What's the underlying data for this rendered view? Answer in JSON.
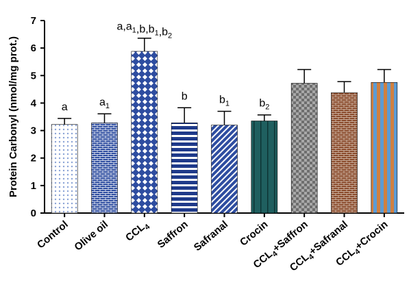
{
  "chart_data": {
    "type": "bar",
    "ylabel": "Protein Carbonyl (nmol/mg prot.)",
    "ylim": [
      0,
      7
    ],
    "yticks": [
      0,
      1,
      2,
      3,
      4,
      5,
      6,
      7
    ],
    "grid": false,
    "categories": [
      {
        "text": "Control",
        "sub": "",
        "tail": ""
      },
      {
        "text": "Olive oil",
        "sub": "",
        "tail": ""
      },
      {
        "text": "CCL",
        "sub": "4",
        "tail": ""
      },
      {
        "text": "Saffron",
        "sub": "",
        "tail": ""
      },
      {
        "text": "Safranal",
        "sub": "",
        "tail": ""
      },
      {
        "text": "Crocin",
        "sub": "",
        "tail": ""
      },
      {
        "text": "CCL",
        "sub": "4",
        "tail": "+Saffron"
      },
      {
        "text": "CCL",
        "sub": "4",
        "tail": "+Safranal"
      },
      {
        "text": "CCL",
        "sub": "4",
        "tail": "+Crocin"
      }
    ],
    "values": [
      3.22,
      3.28,
      5.88,
      3.28,
      3.2,
      3.35,
      4.72,
      4.38,
      4.75
    ],
    "errors": [
      0.22,
      0.33,
      0.48,
      0.55,
      0.5,
      0.22,
      0.5,
      0.4,
      0.47
    ],
    "bar_patterns": [
      "dots",
      "bricks",
      "diamonds",
      "hstripes",
      "diagonal",
      "vstripes-dark",
      "checker",
      "bricks-brown",
      "vstripes-orange"
    ],
    "colors": {
      "blue": "#2E4DA0",
      "light_blue": "#8AA3D6",
      "teal": "#1F5F5F",
      "gray": "#8A8A8A",
      "brown": "#8A4A2B",
      "orange": "#D08040",
      "sky": "#5B9BD5"
    },
    "annotations": [
      {
        "bar": 0,
        "parts": [
          {
            "t": "a"
          }
        ]
      },
      {
        "bar": 1,
        "parts": [
          {
            "t": "a"
          },
          {
            "t": "1",
            "sub": true
          }
        ]
      },
      {
        "bar": 2,
        "parts": [
          {
            "t": "a,a"
          },
          {
            "t": "1",
            "sub": true
          },
          {
            "t": ",b,b"
          },
          {
            "t": "1",
            "sub": true
          },
          {
            "t": ",b"
          },
          {
            "t": "2",
            "sub": true
          }
        ]
      },
      {
        "bar": 3,
        "parts": [
          {
            "t": "b"
          }
        ]
      },
      {
        "bar": 4,
        "parts": [
          {
            "t": "b"
          },
          {
            "t": "1",
            "sub": true
          }
        ]
      },
      {
        "bar": 5,
        "parts": [
          {
            "t": "b"
          },
          {
            "t": "2",
            "sub": true
          }
        ]
      }
    ]
  }
}
